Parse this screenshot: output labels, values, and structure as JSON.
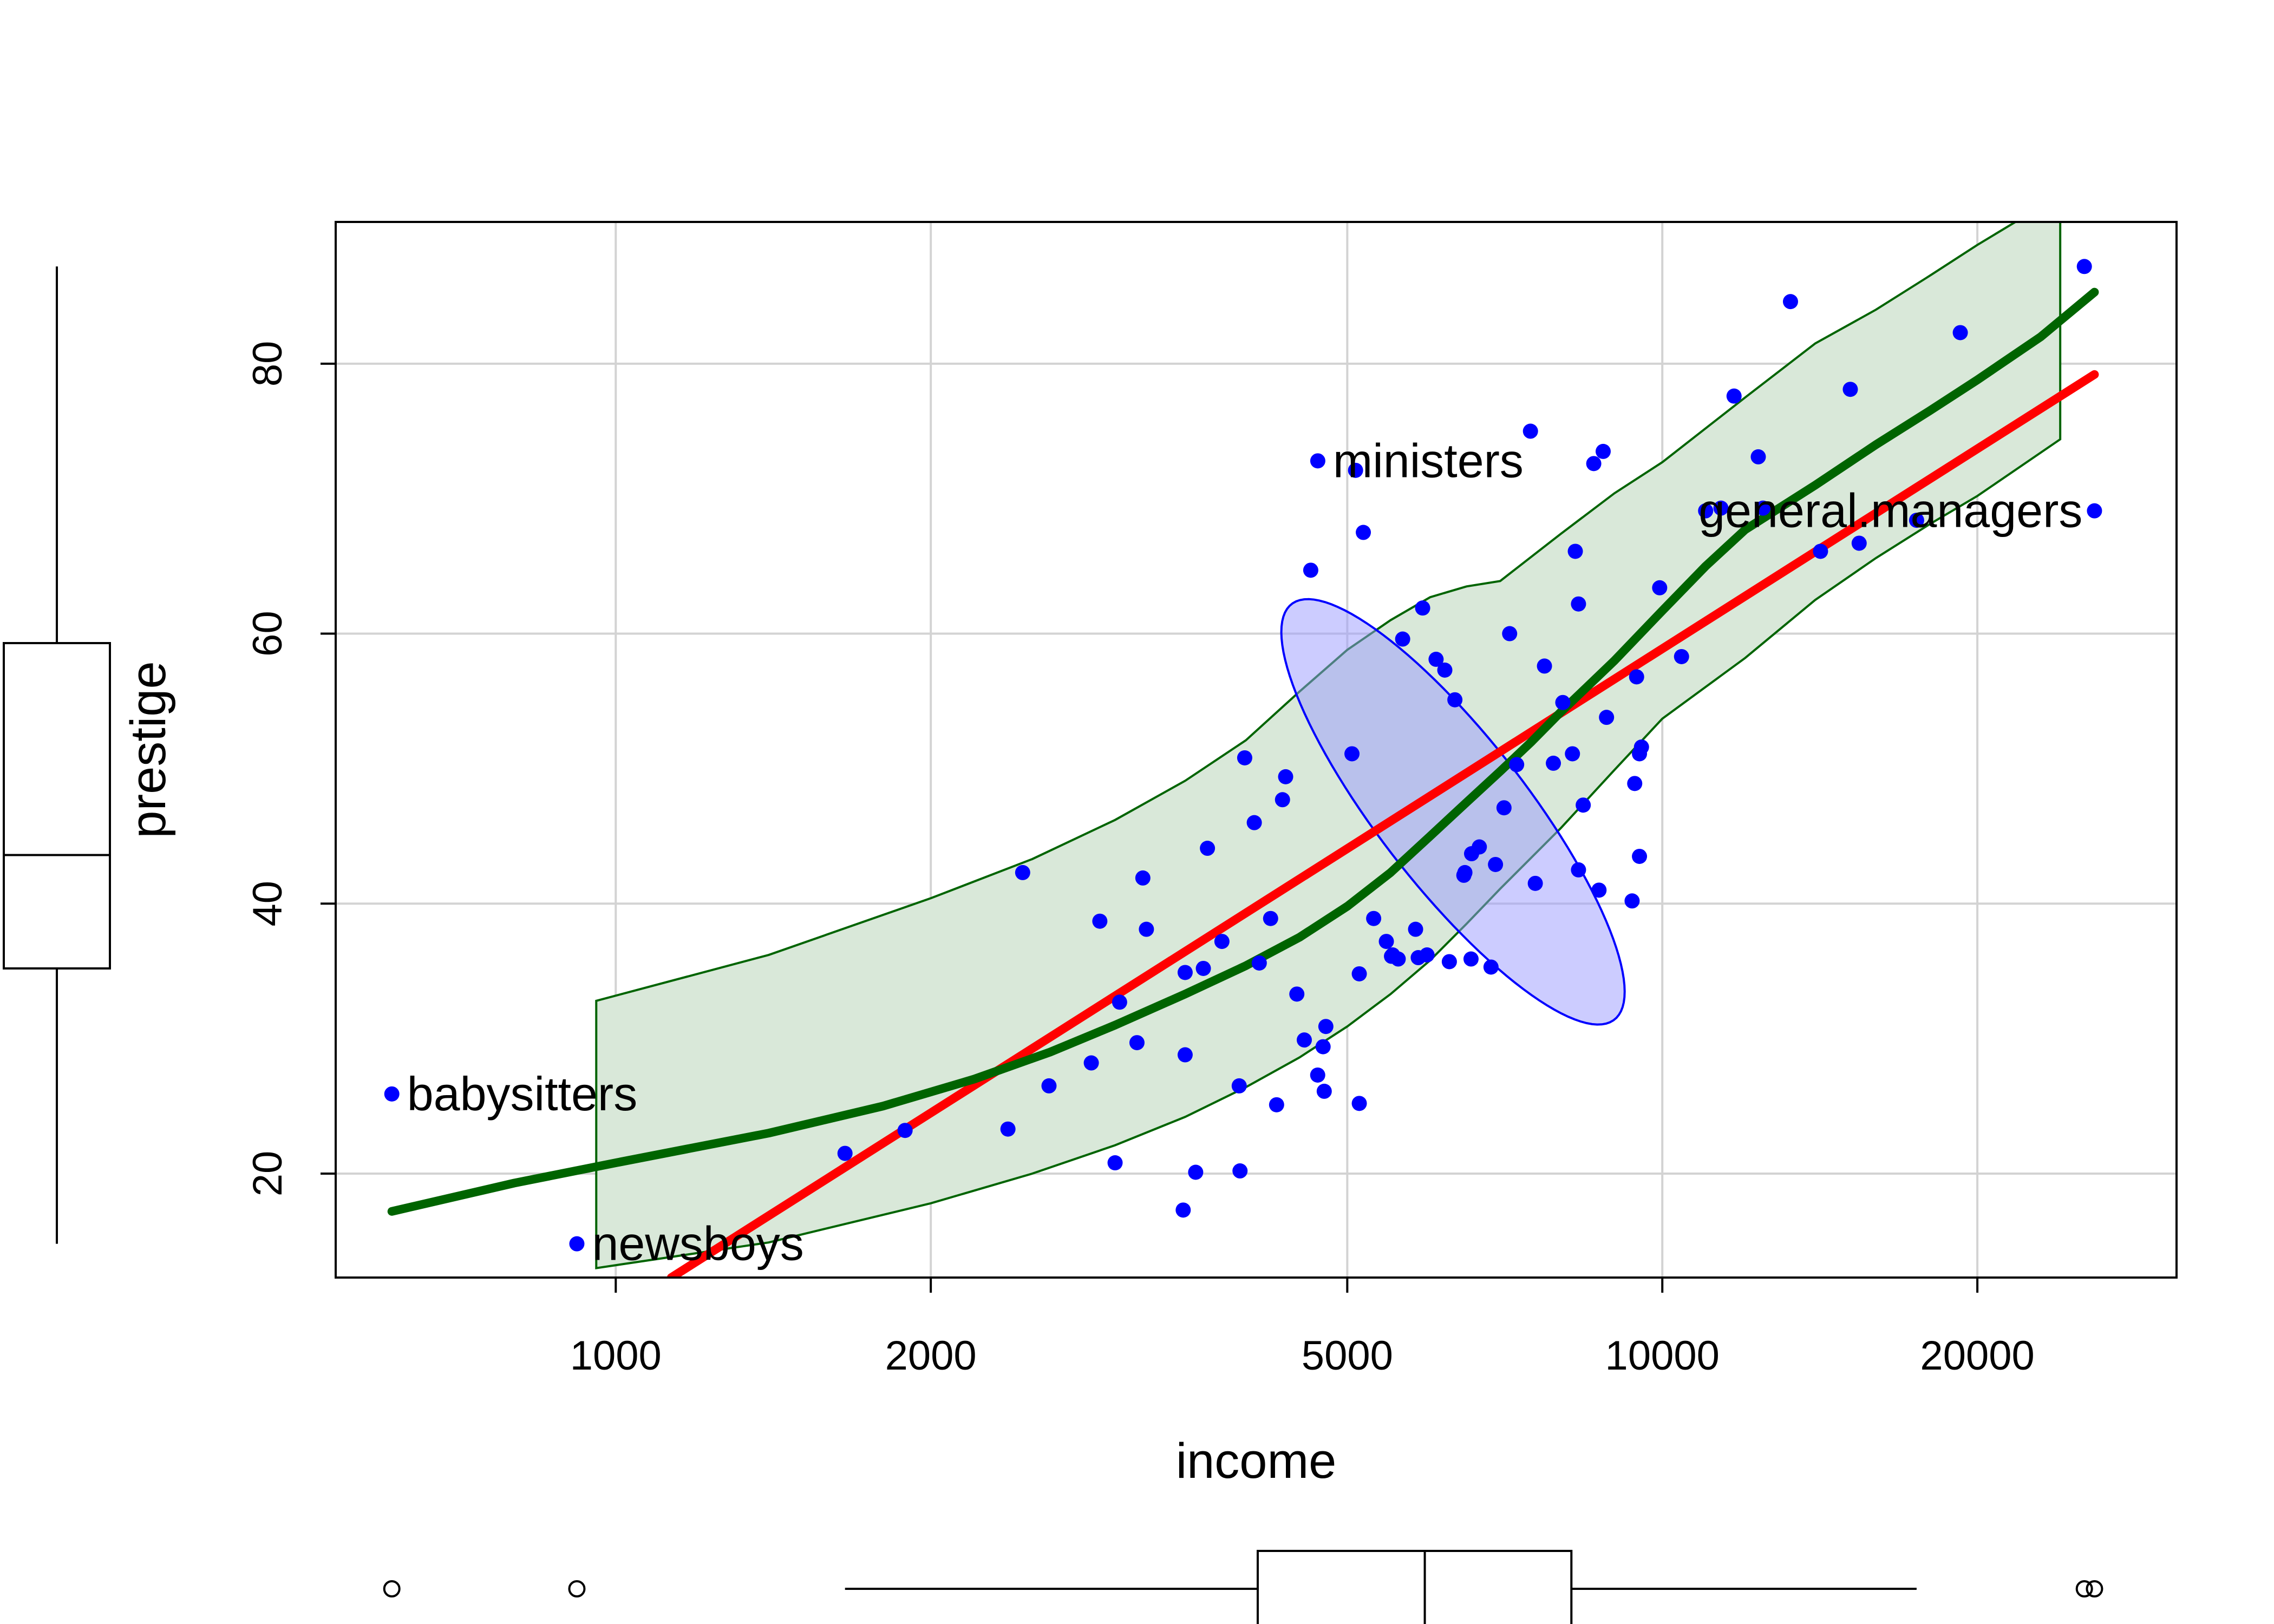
{
  "chart_data": {
    "type": "scatter",
    "xlabel": "income",
    "ylabel": "prestige",
    "x_scale": "log",
    "xlim": [
      540,
      31000
    ],
    "ylim": [
      12.3,
      90.5
    ],
    "x_ticks": [
      1000,
      2000,
      5000,
      10000,
      20000
    ],
    "x_tick_labels": [
      "1000",
      "2000",
      "5000",
      "10000",
      "20000"
    ],
    "y_ticks": [
      20,
      40,
      60,
      80
    ],
    "y_tick_labels": [
      "20",
      "40",
      "60",
      "80"
    ],
    "grid": true,
    "colors": {
      "points": "#0000ff",
      "regression": "#ff0000",
      "smoother": "#006400",
      "band_fill": "#d9e8d9",
      "ellipse_fill": "#9999ff",
      "grid": "#d3d3d3"
    },
    "points": [
      {
        "x": 611,
        "y": 25.9
      },
      {
        "x": 918,
        "y": 14.8
      },
      {
        "x": 1656,
        "y": 21.5
      },
      {
        "x": 1890,
        "y": 23.2
      },
      {
        "x": 2370,
        "y": 23.3
      },
      {
        "x": 2448,
        "y": 42.3
      },
      {
        "x": 2594,
        "y": 26.5
      },
      {
        "x": 2847,
        "y": 28.2
      },
      {
        "x": 2901,
        "y": 38.7
      },
      {
        "x": 3000,
        "y": 20.8
      },
      {
        "x": 3030,
        "y": 32.7
      },
      {
        "x": 3148,
        "y": 29.7
      },
      {
        "x": 3189,
        "y": 41.9
      },
      {
        "x": 3214,
        "y": 38.1
      },
      {
        "x": 3485,
        "y": 17.3
      },
      {
        "x": 3500,
        "y": 28.8
      },
      {
        "x": 3500,
        "y": 34.9
      },
      {
        "x": 3582,
        "y": 20.1
      },
      {
        "x": 3643,
        "y": 35.2
      },
      {
        "x": 3676,
        "y": 44.1
      },
      {
        "x": 3795,
        "y": 37.2
      },
      {
        "x": 3942,
        "y": 26.5
      },
      {
        "x": 3949,
        "y": 20.2
      },
      {
        "x": 3990,
        "y": 50.8
      },
      {
        "x": 4075,
        "y": 46.0
      },
      {
        "x": 4120,
        "y": 35.6
      },
      {
        "x": 4224,
        "y": 38.9
      },
      {
        "x": 4280,
        "y": 25.1
      },
      {
        "x": 4336,
        "y": 47.7
      },
      {
        "x": 4366,
        "y": 49.4
      },
      {
        "x": 4475,
        "y": 33.3
      },
      {
        "x": 4549,
        "y": 29.9
      },
      {
        "x": 4614,
        "y": 64.7
      },
      {
        "x": 4686,
        "y": 72.8
      },
      {
        "x": 4685,
        "y": 27.3
      },
      {
        "x": 4741,
        "y": 29.4
      },
      {
        "x": 4753,
        "y": 26.1
      },
      {
        "x": 4770,
        "y": 30.9
      },
      {
        "x": 5052,
        "y": 51.1
      },
      {
        "x": 5092,
        "y": 72.1
      },
      {
        "x": 5134,
        "y": 25.2
      },
      {
        "x": 5134,
        "y": 34.8
      },
      {
        "x": 5180,
        "y": 67.5
      },
      {
        "x": 5299,
        "y": 38.9
      },
      {
        "x": 5449,
        "y": 37.2
      },
      {
        "x": 5511,
        "y": 36.1
      },
      {
        "x": 5525,
        "y": 36.2
      },
      {
        "x": 5593,
        "y": 35.9
      },
      {
        "x": 5648,
        "y": 59.6
      },
      {
        "x": 5811,
        "y": 38.1
      },
      {
        "x": 5845,
        "y": 36.0
      },
      {
        "x": 5902,
        "y": 61.9
      },
      {
        "x": 5959,
        "y": 36.2
      },
      {
        "x": 6079,
        "y": 58.1
      },
      {
        "x": 6197,
        "y": 57.3
      },
      {
        "x": 6259,
        "y": 35.7
      },
      {
        "x": 6336,
        "y": 55.1
      },
      {
        "x": 6462,
        "y": 42.1
      },
      {
        "x": 6477,
        "y": 42.3
      },
      {
        "x": 6565,
        "y": 35.9
      },
      {
        "x": 6573,
        "y": 43.7
      },
      {
        "x": 6686,
        "y": 44.2
      },
      {
        "x": 6860,
        "y": 35.3
      },
      {
        "x": 6928,
        "y": 42.9
      },
      {
        "x": 7059,
        "y": 47.1
      },
      {
        "x": 7147,
        "y": 60.0
      },
      {
        "x": 7258,
        "y": 50.3
      },
      {
        "x": 7482,
        "y": 75.0
      },
      {
        "x": 7562,
        "y": 41.5
      },
      {
        "x": 7716,
        "y": 57.6
      },
      {
        "x": 7869,
        "y": 50.4
      },
      {
        "x": 8034,
        "y": 54.9
      },
      {
        "x": 8206,
        "y": 51.1
      },
      {
        "x": 8258,
        "y": 66.1
      },
      {
        "x": 8316,
        "y": 62.2
      },
      {
        "x": 8316,
        "y": 42.5
      },
      {
        "x": 8403,
        "y": 47.3
      },
      {
        "x": 8600,
        "y": 72.6
      },
      {
        "x": 8700,
        "y": 41.0
      },
      {
        "x": 8780,
        "y": 73.5
      },
      {
        "x": 8845,
        "y": 53.8
      },
      {
        "x": 9357,
        "y": 40.2
      },
      {
        "x": 9411,
        "y": 48.9
      },
      {
        "x": 9450,
        "y": 56.8
      },
      {
        "x": 9510,
        "y": 43.5
      },
      {
        "x": 9510,
        "y": 51.1
      },
      {
        "x": 9552,
        "y": 51.6
      },
      {
        "x": 9942,
        "y": 63.4
      },
      {
        "x": 10432,
        "y": 58.3
      },
      {
        "x": 11000,
        "y": 69.1
      },
      {
        "x": 11377,
        "y": 69.3
      },
      {
        "x": 11710,
        "y": 77.6
      },
      {
        "x": 12351,
        "y": 73.1
      },
      {
        "x": 12480,
        "y": 69.3
      },
      {
        "x": 13258,
        "y": 84.6
      },
      {
        "x": 14163,
        "y": 66.1
      },
      {
        "x": 15123,
        "y": 78.1
      },
      {
        "x": 15420,
        "y": 66.7
      },
      {
        "x": 17498,
        "y": 68.4
      },
      {
        "x": 19263,
        "y": 82.3
      },
      {
        "x": 25308,
        "y": 87.2
      },
      {
        "x": 25879,
        "y": 69.1
      }
    ],
    "annotations": [
      {
        "text": "babysitters",
        "x": 611,
        "y": 25.9
      },
      {
        "text": "newsboys",
        "x": 918,
        "y": 14.8
      },
      {
        "text": "ministers",
        "x": 4686,
        "y": 72.8
      },
      {
        "text": "general.managers",
        "x": 25879,
        "y": 69.1
      }
    ],
    "regression_line": {
      "x": [
        1130,
        25879
      ],
      "y": [
        12.3,
        79.2
      ]
    },
    "smoother": {
      "x": [
        611,
        800,
        1000,
        1400,
        1800,
        2200,
        2600,
        3000,
        3500,
        4000,
        4500,
        5000,
        5500,
        6000,
        6500,
        7000,
        7500,
        8000,
        9000,
        10000,
        11000,
        12000,
        14000,
        16000,
        18000,
        20000,
        23000,
        25879
      ],
      "y": [
        17.2,
        19.3,
        20.8,
        23.0,
        25.0,
        27.0,
        29.0,
        31.0,
        33.3,
        35.4,
        37.5,
        39.8,
        42.3,
        45.0,
        47.5,
        49.8,
        52.0,
        54.2,
        58.0,
        61.7,
        65.0,
        67.7,
        71.0,
        74.0,
        76.5,
        78.8,
        82.0,
        85.3
      ]
    },
    "smoother_band": {
      "x": [
        958,
        1400,
        2000,
        2500,
        3000,
        3500,
        4000,
        4500,
        5000,
        5500,
        6000,
        6500,
        7000,
        8000,
        9000,
        10000,
        12000,
        14000,
        16000,
        18000,
        20000,
        24000
      ],
      "upper": [
        32.8,
        36.2,
        40.4,
        43.3,
        46.2,
        49.1,
        52.1,
        55.7,
        58.8,
        61.0,
        62.7,
        63.5,
        63.9,
        67.4,
        70.4,
        72.7,
        77.5,
        81.5,
        84.0,
        86.5,
        88.8,
        92.5
      ],
      "lower": [
        13.0,
        14.9,
        17.8,
        20.0,
        22.1,
        24.2,
        26.4,
        28.6,
        30.9,
        33.3,
        35.8,
        38.5,
        41.1,
        45.6,
        49.9,
        53.7,
        58.2,
        62.5,
        65.6,
        68.1,
        70.2,
        74.4
      ]
    },
    "ellipse": {
      "center_log10_x": 3.8,
      "center_y": 46.8,
      "a": 18,
      "b": 4.6,
      "angle_deg": 120
    },
    "marginal_boxplot_x": {
      "whisker_low": 1656,
      "q1": 4106,
      "median": 5930,
      "q3": 8187,
      "whisker_high": 17498,
      "outliers": [
        611,
        918,
        25308,
        25879
      ]
    },
    "marginal_boxplot_y": {
      "whisker_low": 14.8,
      "q1": 35.2,
      "median": 43.6,
      "q3": 59.3,
      "whisker_high": 87.2
    }
  }
}
